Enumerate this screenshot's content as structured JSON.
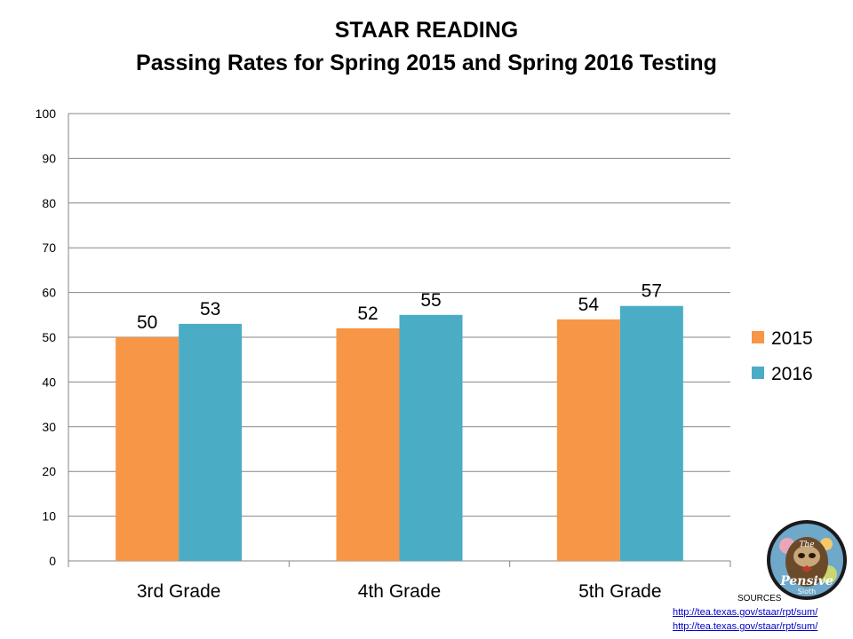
{
  "chart_data": {
    "type": "bar",
    "title": "STAAR READING",
    "subtitle": "Passing Rates for Spring 2015 and Spring 2016 Testing",
    "categories": [
      "3rd Grade",
      "4th Grade",
      "5th Grade"
    ],
    "series": [
      {
        "name": "2015",
        "values": [
          50,
          52,
          54
        ],
        "color": "#F79646"
      },
      {
        "name": "2016",
        "values": [
          53,
          55,
          57
        ],
        "color": "#4BACC6"
      }
    ],
    "ylim": [
      0,
      100
    ],
    "yticks": [
      0,
      10,
      20,
      30,
      40,
      50,
      60,
      70,
      80,
      90,
      100
    ],
    "grid": true,
    "legend": "right",
    "data_labels": true
  },
  "sources": {
    "label": "SOURCES",
    "links": [
      "http://tea.texas.gov/staar/rpt/sum/",
      "http://tea.texas.gov/staar/rpt/sum/"
    ]
  },
  "logo": {
    "text_top": "The",
    "text_main": "Pensive",
    "text_bottom": "Sloth"
  }
}
